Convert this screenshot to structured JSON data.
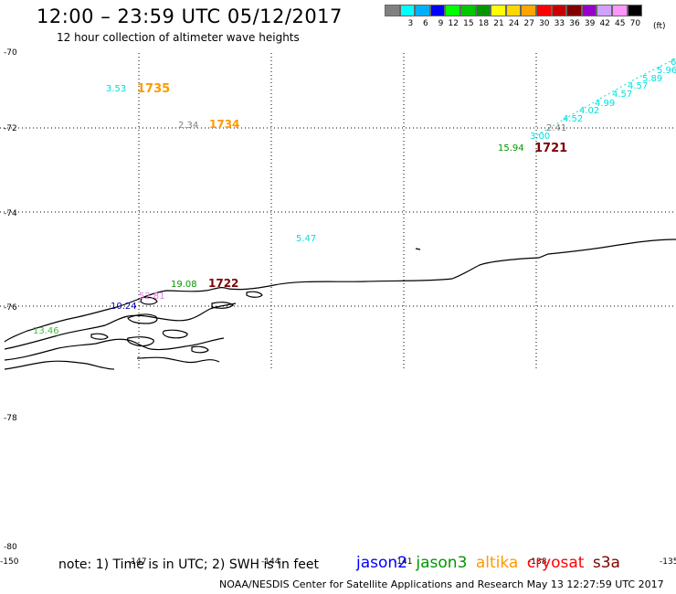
{
  "title": "12:00 – 23:59 UTC 05/12/2017",
  "subtitle": "12 hour collection of altimeter wave heights",
  "scale": {
    "unit": "(ft)",
    "labels": [
      "3",
      "6",
      "9",
      "12",
      "15",
      "18",
      "21",
      "24",
      "27",
      "30",
      "33",
      "36",
      "39",
      "42",
      "45",
      "70"
    ],
    "colors": [
      "#808080",
      "#00ffff",
      "#00b0ff",
      "#0000ff",
      "#00ff00",
      "#00c800",
      "#009600",
      "#ffff00",
      "#ffd700",
      "#ffa500",
      "#ff0000",
      "#c80000",
      "#800000",
      "#9600c8",
      "#d0a0ff",
      "#ff96ff",
      "#000000"
    ]
  },
  "lat_labels": [
    "-70",
    "-72",
    "-74",
    "-76",
    "-78",
    "-80"
  ],
  "lon_labels": [
    "-150",
    "-147",
    "-144",
    "-141",
    "-138",
    "-135"
  ],
  "map": {
    "observations": [
      {
        "text": "3.53",
        "color": "#00e0e0"
      },
      {
        "text": "1735",
        "color": "#ff9900",
        "pass": true
      },
      {
        "text": "2.34",
        "color": "#808080"
      },
      {
        "text": "1734",
        "color": "#ff9900",
        "pass": true
      },
      {
        "text": "5.47",
        "color": "#00e0e0"
      },
      {
        "text": "19.08",
        "color": "#009600"
      },
      {
        "text": "1722",
        "color": "#800000",
        "pass": true
      },
      {
        "text": "52.81",
        "color": "#e080e0"
      },
      {
        "text": "10.24",
        "color": "#0000c0"
      },
      {
        "text": "13.46",
        "color": "#40c040"
      },
      {
        "text": "15.94",
        "color": "#009600"
      },
      {
        "text": "1721",
        "color": "#800000",
        "pass": true
      },
      {
        "text": "2.41",
        "color": "#808080"
      },
      {
        "text": "3.00",
        "color": "#00e0e0"
      },
      {
        "text": "4.52",
        "color": "#00e0e0"
      },
      {
        "text": "4.02",
        "color": "#00e0e0"
      },
      {
        "text": "4.99",
        "color": "#00e0e0"
      },
      {
        "text": "4.57",
        "color": "#00e0e0"
      },
      {
        "text": "4.57",
        "color": "#00e0e0"
      },
      {
        "text": "5.89",
        "color": "#00e0e0"
      },
      {
        "text": "5.96",
        "color": "#00e0e0"
      },
      {
        "text": "6",
        "color": "#00e0e0"
      }
    ]
  },
  "note": "note: 1) Time is in UTC; 2) SWH is in feet",
  "legend": [
    {
      "text": "jason2",
      "color": "#0000ff"
    },
    {
      "text": "jason3",
      "color": "#009600"
    },
    {
      "text": "altika",
      "color": "#ff9900"
    },
    {
      "text": "cryosat",
      "color": "#ff0000"
    },
    {
      "text": "s3a",
      "color": "#800000"
    }
  ],
  "footer": "NOAA/NESDIS Center for Satellite Applications and Research    May 13 12:27:59 UTC 2017"
}
